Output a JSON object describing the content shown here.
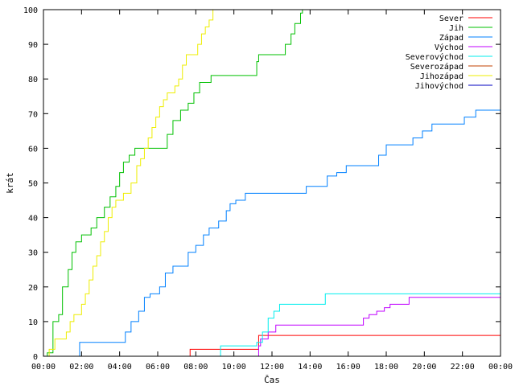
{
  "chart_data": {
    "type": "line",
    "title": "",
    "xlabel": "Čas",
    "ylabel": "krát",
    "ylim": [
      0,
      100
    ],
    "xlim": [
      "00:00",
      "24:00"
    ],
    "x_unit": "hours",
    "grid": false,
    "legend_position": "top-right",
    "x_ticks": [
      {
        "value": 0,
        "label": "00:00"
      },
      {
        "value": 2,
        "label": "02:00"
      },
      {
        "value": 4,
        "label": "04:00"
      },
      {
        "value": 6,
        "label": "06:00"
      },
      {
        "value": 8,
        "label": "08:00"
      },
      {
        "value": 10,
        "label": "10:00"
      },
      {
        "value": 12,
        "label": "12:00"
      },
      {
        "value": 14,
        "label": "14:00"
      },
      {
        "value": 16,
        "label": "16:00"
      },
      {
        "value": 18,
        "label": "18:00"
      },
      {
        "value": 20,
        "label": "20:00"
      },
      {
        "value": 22,
        "label": "22:00"
      },
      {
        "value": 24,
        "label": "00:00"
      }
    ],
    "y_ticks": [
      0,
      10,
      20,
      30,
      40,
      50,
      60,
      70,
      80,
      90,
      100
    ],
    "series": [
      {
        "name": "Sever",
        "color": "#ff0000",
        "step": true,
        "points": [
          [
            0,
            0
          ],
          [
            7.7,
            0
          ],
          [
            7.7,
            2
          ],
          [
            10.9,
            2
          ],
          [
            11.3,
            4
          ],
          [
            11.3,
            6
          ],
          [
            24,
            6
          ]
        ]
      },
      {
        "name": "Jih",
        "color": "#00c000",
        "step": true,
        "points": [
          [
            0,
            0
          ],
          [
            0.2,
            1
          ],
          [
            0.5,
            10
          ],
          [
            0.8,
            12
          ],
          [
            1.0,
            20
          ],
          [
            1.3,
            25
          ],
          [
            1.5,
            30
          ],
          [
            1.7,
            33
          ],
          [
            2.0,
            35
          ],
          [
            2.5,
            37
          ],
          [
            2.8,
            40
          ],
          [
            3.2,
            43
          ],
          [
            3.5,
            46
          ],
          [
            3.8,
            49
          ],
          [
            4.0,
            53
          ],
          [
            4.2,
            56
          ],
          [
            4.5,
            58
          ],
          [
            4.8,
            60
          ],
          [
            6.2,
            60
          ],
          [
            6.5,
            64
          ],
          [
            6.8,
            68
          ],
          [
            7.2,
            71
          ],
          [
            7.6,
            73
          ],
          [
            7.9,
            76
          ],
          [
            8.2,
            79
          ],
          [
            8.8,
            81
          ],
          [
            10.9,
            81
          ],
          [
            11.2,
            85
          ],
          [
            11.3,
            87
          ],
          [
            12.4,
            87
          ],
          [
            12.7,
            90
          ],
          [
            13.0,
            93
          ],
          [
            13.2,
            96
          ],
          [
            13.5,
            99
          ],
          [
            13.6,
            100
          ]
        ]
      },
      {
        "name": "Západ",
        "color": "#0080ff",
        "step": true,
        "points": [
          [
            0,
            0
          ],
          [
            1.8,
            0
          ],
          [
            1.9,
            4
          ],
          [
            4.0,
            4
          ],
          [
            4.3,
            7
          ],
          [
            4.6,
            10
          ],
          [
            5.0,
            13
          ],
          [
            5.3,
            17
          ],
          [
            5.6,
            18
          ],
          [
            6.1,
            20
          ],
          [
            6.4,
            24
          ],
          [
            6.8,
            26
          ],
          [
            7.4,
            26
          ],
          [
            7.6,
            30
          ],
          [
            8.0,
            32
          ],
          [
            8.4,
            35
          ],
          [
            8.7,
            37
          ],
          [
            9.2,
            39
          ],
          [
            9.6,
            42
          ],
          [
            9.8,
            44
          ],
          [
            10.1,
            45
          ],
          [
            10.6,
            47
          ],
          [
            13.5,
            47
          ],
          [
            13.8,
            49
          ],
          [
            14.6,
            49
          ],
          [
            14.9,
            52
          ],
          [
            15.4,
            53
          ],
          [
            15.9,
            55
          ],
          [
            17.4,
            55
          ],
          [
            17.6,
            58
          ],
          [
            18.0,
            61
          ],
          [
            19.0,
            61
          ],
          [
            19.4,
            63
          ],
          [
            19.9,
            65
          ],
          [
            20.4,
            67
          ],
          [
            21.8,
            67
          ],
          [
            22.1,
            69
          ],
          [
            22.7,
            71
          ],
          [
            24,
            71
          ]
        ]
      },
      {
        "name": "Východ",
        "color": "#c000ff",
        "step": true,
        "points": [
          [
            0,
            0
          ],
          [
            11.1,
            0
          ],
          [
            11.3,
            3
          ],
          [
            11.4,
            5
          ],
          [
            11.8,
            7
          ],
          [
            12.2,
            9
          ],
          [
            16.7,
            9
          ],
          [
            16.8,
            11
          ],
          [
            17.1,
            12
          ],
          [
            17.5,
            13
          ],
          [
            17.9,
            14
          ],
          [
            18.2,
            15
          ],
          [
            18.8,
            15
          ],
          [
            19.2,
            17
          ],
          [
            24,
            17
          ]
        ]
      },
      {
        "name": "Severovýchod",
        "color": "#00eeee",
        "step": true,
        "points": [
          [
            0,
            0
          ],
          [
            9.2,
            0
          ],
          [
            9.3,
            3
          ],
          [
            11.0,
            3
          ],
          [
            11.2,
            4
          ],
          [
            11.5,
            7
          ],
          [
            11.8,
            11
          ],
          [
            12.1,
            13
          ],
          [
            12.4,
            15
          ],
          [
            14.7,
            15
          ],
          [
            14.8,
            18
          ],
          [
            24,
            18
          ]
        ]
      },
      {
        "name": "Severozápad",
        "color": "#c04000",
        "step": true,
        "points": [
          [
            0,
            0
          ],
          [
            24,
            0
          ]
        ]
      },
      {
        "name": "Jihozápad",
        "color": "#eeee00",
        "step": true,
        "points": [
          [
            0,
            0
          ],
          [
            0.3,
            2
          ],
          [
            0.6,
            5
          ],
          [
            1.2,
            7
          ],
          [
            1.4,
            10
          ],
          [
            1.6,
            12
          ],
          [
            2.0,
            15
          ],
          [
            2.2,
            18
          ],
          [
            2.4,
            22
          ],
          [
            2.6,
            26
          ],
          [
            2.8,
            29
          ],
          [
            3.0,
            33
          ],
          [
            3.2,
            36
          ],
          [
            3.4,
            40
          ],
          [
            3.6,
            43
          ],
          [
            3.8,
            45
          ],
          [
            4.2,
            47
          ],
          [
            4.6,
            50
          ],
          [
            4.9,
            55
          ],
          [
            5.1,
            57
          ],
          [
            5.3,
            60
          ],
          [
            5.5,
            63
          ],
          [
            5.7,
            66
          ],
          [
            5.9,
            69
          ],
          [
            6.1,
            72
          ],
          [
            6.3,
            74
          ],
          [
            6.5,
            76
          ],
          [
            6.9,
            78
          ],
          [
            7.1,
            80
          ],
          [
            7.3,
            84
          ],
          [
            7.5,
            87
          ],
          [
            7.9,
            87
          ],
          [
            8.1,
            90
          ],
          [
            8.3,
            93
          ],
          [
            8.5,
            95
          ],
          [
            8.7,
            97
          ],
          [
            8.9,
            100
          ]
        ]
      },
      {
        "name": "Jihovýchod",
        "color": "#0000c0",
        "step": true,
        "points": [
          [
            0,
            0
          ],
          [
            24,
            0
          ]
        ]
      }
    ]
  }
}
